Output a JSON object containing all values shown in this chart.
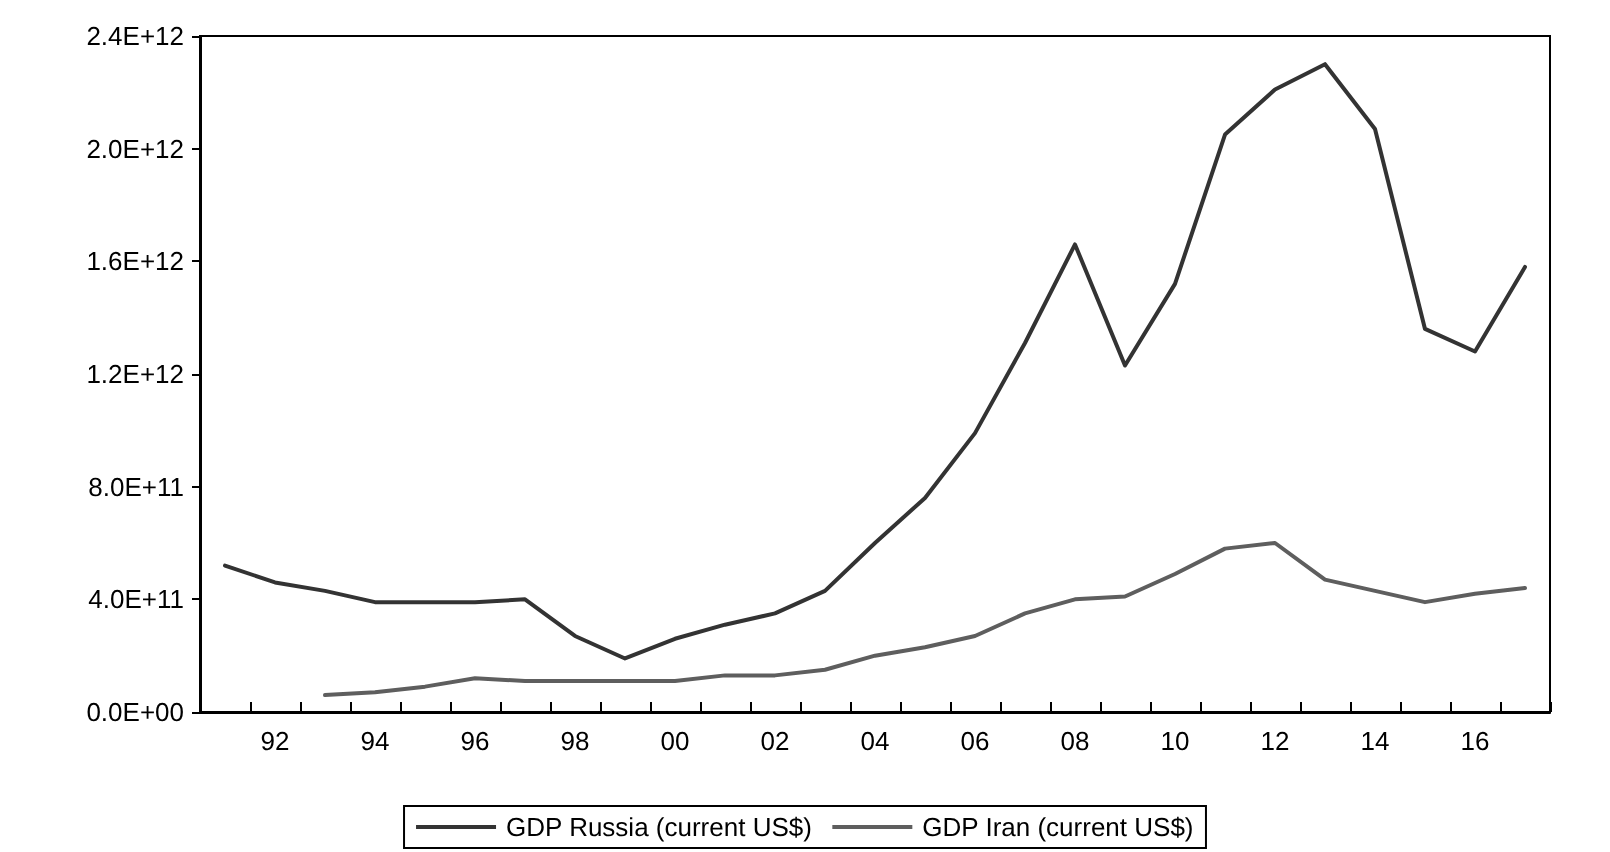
{
  "chart_data": {
    "type": "line",
    "categories": [
      null,
      "92",
      null,
      "94",
      null,
      "96",
      null,
      "98",
      null,
      "00",
      null,
      "02",
      null,
      "04",
      null,
      "06",
      null,
      "08",
      null,
      "10",
      null,
      "12",
      null,
      "14",
      null,
      "16",
      null
    ],
    "series": [
      {
        "name": "GDP Russia (current US$)",
        "color": "#333333",
        "values": [
          520000000000.0,
          460000000000.0,
          430000000000.0,
          390000000000.0,
          390000000000.0,
          390000000000.0,
          400000000000.0,
          270000000000.0,
          190000000000.0,
          260000000000.0,
          310000000000.0,
          350000000000.0,
          430000000000.0,
          600000000000.0,
          760000000000.0,
          990000000000.0,
          1310000000000.0,
          1660000000000.0,
          1230000000000.0,
          1520000000000.0,
          2050000000000.0,
          2210000000000.0,
          2300000000000.0,
          2070000000000.0,
          1360000000000.0,
          1280000000000.0,
          1580000000000.0
        ]
      },
      {
        "name": "GDP Iran (current US$)",
        "color": "#5e5e5e",
        "values": [
          null,
          null,
          60000000000.0,
          70000000000.0,
          90000000000.0,
          120000000000.0,
          110000000000.0,
          110000000000.0,
          110000000000.0,
          110000000000.0,
          130000000000.0,
          130000000000.0,
          150000000000.0,
          200000000000.0,
          230000000000.0,
          270000000000.0,
          350000000000.0,
          400000000000.0,
          410000000000.0,
          490000000000.0,
          580000000000.0,
          600000000000.0,
          470000000000.0,
          430000000000.0,
          390000000000.0,
          420000000000.0,
          440000000000.0
        ]
      }
    ],
    "ylim": [
      0,
      2400000000000.0
    ],
    "yticks": [
      {
        "value": 0,
        "label": "0.0E+00"
      },
      {
        "value": 400000000000.0,
        "label": "4.0E+11"
      },
      {
        "value": 800000000000.0,
        "label": "8.0E+11"
      },
      {
        "value": 1200000000000.0,
        "label": "1.2E+12"
      },
      {
        "value": 1600000000000.0,
        "label": "1.6E+12"
      },
      {
        "value": 2000000000000.0,
        "label": "2.0E+12"
      },
      {
        "value": 2400000000000.0,
        "label": "2.4E+12"
      }
    ],
    "grid": false,
    "legend": "bottom",
    "marker": "none",
    "line_style": "solid"
  }
}
